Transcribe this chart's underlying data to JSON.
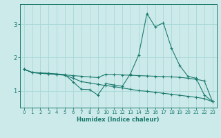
{
  "xlabel": "Humidex (Indice chaleur)",
  "xlim": [
    -0.5,
    23.5
  ],
  "ylim": [
    0.5,
    3.6
  ],
  "yticks": [
    1,
    2,
    3
  ],
  "xticks": [
    0,
    1,
    2,
    3,
    4,
    5,
    6,
    7,
    8,
    9,
    10,
    11,
    12,
    13,
    14,
    15,
    16,
    17,
    18,
    19,
    20,
    21,
    22,
    23
  ],
  "background_color": "#cdeaea",
  "grid_color": "#a8d8d8",
  "line_color": "#1a7a6e",
  "line1_x": [
    0,
    1,
    2,
    3,
    4,
    5,
    6,
    7,
    8,
    9,
    10,
    11,
    12,
    13,
    14,
    15,
    16,
    17,
    18,
    19,
    20,
    21,
    22,
    23
  ],
  "line1_y": [
    1.65,
    1.56,
    1.54,
    1.53,
    1.51,
    1.49,
    1.27,
    1.05,
    1.04,
    0.88,
    1.22,
    1.18,
    1.14,
    1.52,
    2.08,
    3.32,
    2.92,
    3.04,
    2.28,
    1.76,
    1.44,
    1.38,
    0.88,
    0.68
  ],
  "line2_x": [
    0,
    1,
    2,
    3,
    4,
    5,
    6,
    7,
    8,
    9,
    10,
    11,
    12,
    13,
    14,
    15,
    16,
    17,
    18,
    19,
    20,
    21,
    22,
    23
  ],
  "line2_y": [
    1.65,
    1.55,
    1.53,
    1.52,
    1.5,
    1.48,
    1.46,
    1.44,
    1.42,
    1.4,
    1.5,
    1.49,
    1.48,
    1.47,
    1.46,
    1.45,
    1.44,
    1.43,
    1.42,
    1.41,
    1.38,
    1.35,
    1.3,
    0.68
  ],
  "line3_x": [
    0,
    1,
    2,
    3,
    4,
    5,
    6,
    7,
    8,
    9,
    10,
    11,
    12,
    13,
    14,
    15,
    16,
    17,
    18,
    19,
    20,
    21,
    22,
    23
  ],
  "line3_y": [
    1.65,
    1.55,
    1.53,
    1.51,
    1.49,
    1.47,
    1.38,
    1.28,
    1.24,
    1.2,
    1.16,
    1.13,
    1.09,
    1.05,
    1.01,
    0.99,
    0.96,
    0.93,
    0.9,
    0.87,
    0.84,
    0.81,
    0.77,
    0.68
  ],
  "fig_width": 3.2,
  "fig_height": 2.0,
  "dpi": 100
}
